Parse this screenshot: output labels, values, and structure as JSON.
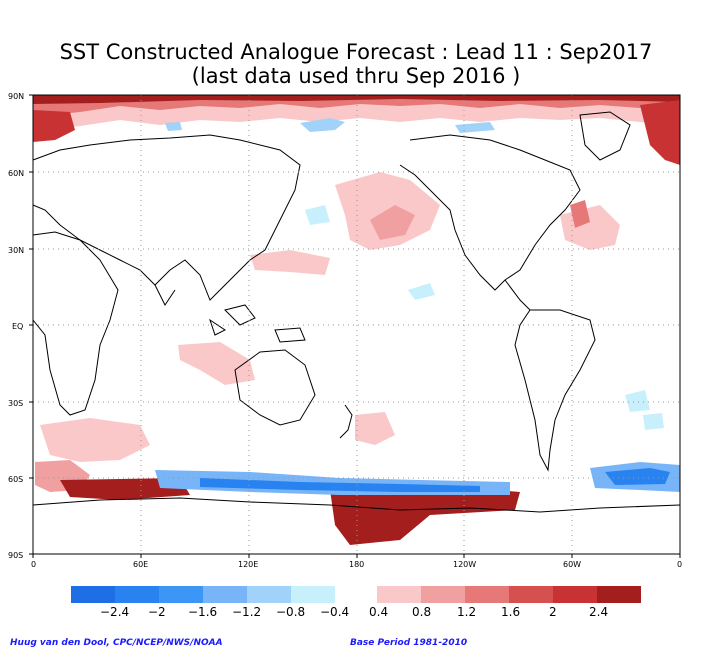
{
  "title_line1": "SST Constructed Analogue Forecast : Lead 11 : Sep2017",
  "title_line2": "(last data used thru Sep 2016 )",
  "map": {
    "lat_labels": [
      "90N",
      "60N",
      "30N",
      "EQ",
      "30S",
      "60S",
      "90S"
    ],
    "lon_labels": [
      "0",
      "60E",
      "120E",
      "180",
      "120W",
      "60W",
      "0"
    ]
  },
  "colorbar": {
    "negative_colors": [
      "#1e6ee6",
      "#2882f0",
      "#3c96f5",
      "#78b4f8",
      "#a0d2fa",
      "#c8f0fc"
    ],
    "positive_colors": [
      "#fac8c8",
      "#f0a0a0",
      "#e67878",
      "#d75050",
      "#c83232",
      "#a51e1e"
    ],
    "negative_labels": [
      "−2.4",
      "−2",
      "−1.6",
      "−1.2",
      "−0.8",
      "−0.4"
    ],
    "positive_labels": [
      "0.4",
      "0.8",
      "1.2",
      "1.6",
      "2",
      "2.4"
    ]
  },
  "footer": {
    "credit": "Huug van den Dool, CPC/NCEP/NWS/NOAA",
    "base_period": "Base Period 1981-2010"
  }
}
